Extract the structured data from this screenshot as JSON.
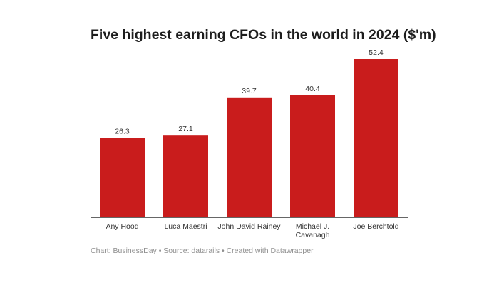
{
  "chart_data": {
    "type": "bar",
    "title": "Five highest earning CFOs in the world in 2024 ($'m)",
    "categories": [
      "Any Hood",
      "Luca Maestri",
      "John David Rainey",
      "Michael J. Cavanagh",
      "Joe Berchtold"
    ],
    "category_lines": [
      [
        "Any Hood"
      ],
      [
        "Luca Maestri"
      ],
      [
        "John David Rainey"
      ],
      [
        "Michael J.",
        "Cavanagh"
      ],
      [
        "Joe Berchtold"
      ]
    ],
    "values": [
      26.3,
      27.1,
      39.7,
      40.4,
      52.4
    ],
    "data_labels": [
      "26.3",
      "27.1",
      "39.7",
      "40.4",
      "52.4"
    ],
    "xlabel": "",
    "ylabel": "",
    "ylim": [
      0,
      52.4
    ],
    "grid": false,
    "bar_color": "#c91c1c"
  },
  "footer": "Chart: BusinessDay • Source: datarails • Created with Datawrapper"
}
